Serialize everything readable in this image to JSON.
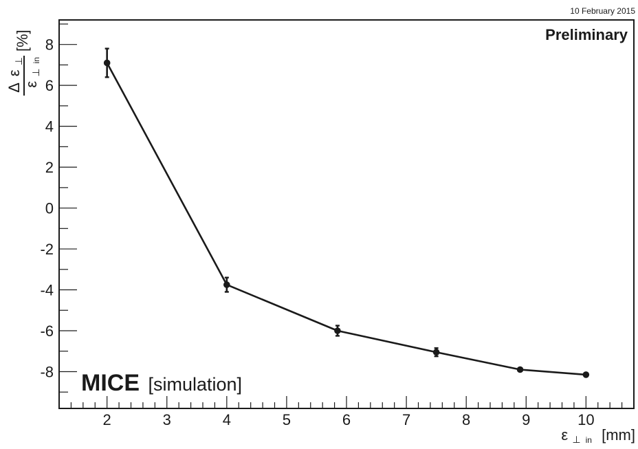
{
  "date": "10 February 2015",
  "status_label": "Preliminary",
  "experiment": {
    "name": "MICE",
    "note": "[simulation]"
  },
  "axes": {
    "y_label": {
      "delta": "Δ",
      "eps": "ε",
      "perp": "⊥",
      "in": "in",
      "unit": "[%]"
    },
    "x_label": {
      "eps": "ε",
      "perp": "⊥",
      "in": "in",
      "unit": "[mm]"
    }
  },
  "chart_data": {
    "type": "line",
    "x": [
      2,
      4,
      5.85,
      7.5,
      8.9,
      10
    ],
    "y": [
      7.1,
      -3.75,
      -6.0,
      -7.05,
      -7.9,
      -8.15
    ],
    "yerr": [
      0.7,
      0.35,
      0.25,
      0.2,
      0.08,
      0.08
    ],
    "xlim": [
      1.2,
      10.8
    ],
    "ylim": [
      -9.8,
      9.2
    ],
    "xticks": [
      2,
      3,
      4,
      5,
      6,
      7,
      8,
      9,
      10
    ],
    "yticks": [
      8,
      6,
      4,
      2,
      0,
      -2,
      -4,
      -6,
      -8
    ],
    "grid": false,
    "line_color": "#1a1a1a"
  }
}
